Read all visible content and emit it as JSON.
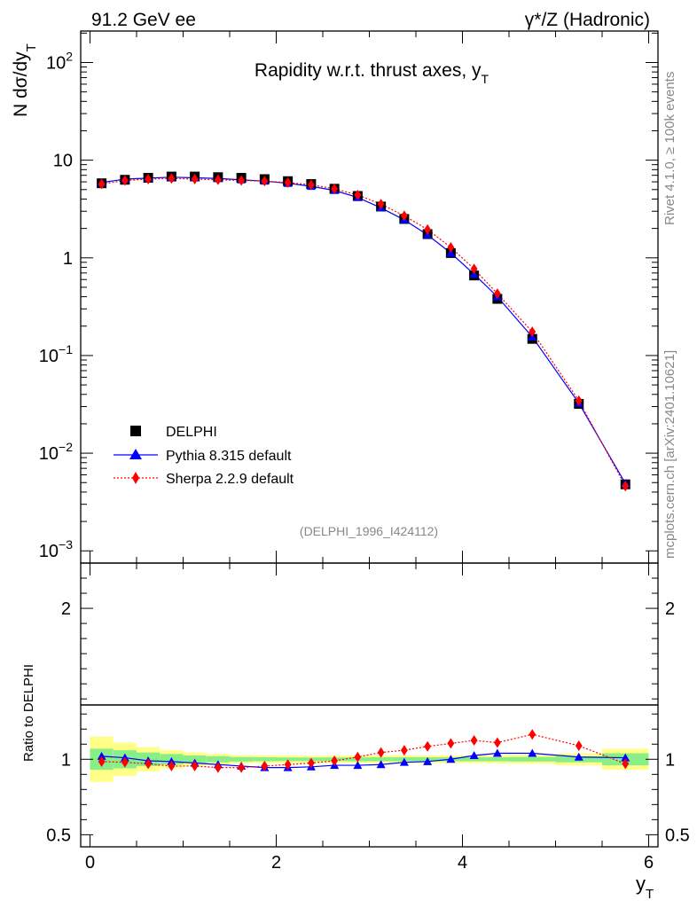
{
  "header": {
    "left": "91.2 GeV ee",
    "right": "γ*/Z (Hadronic)"
  },
  "side_labels": {
    "rivet": "Rivet 4.1.0, ≥ 100k events",
    "mcplots": "mcplots.cern.ch [arXiv:2401.10621]"
  },
  "chart_data": [
    {
      "type": "scatter",
      "panel": "main",
      "title": "Rapidity w.r.t. thrust axes, y",
      "title_subscript": "T",
      "ylabel": "N  dσ/dy",
      "ylabel_subscript": "T",
      "yscale": "log",
      "ylim": [
        0.00075,
        210
      ],
      "xlim": [
        -0.1,
        6.1
      ],
      "y_tick_labels": [
        {
          "value": 100,
          "base": "10",
          "exp": "2"
        },
        {
          "value": 10,
          "base": "10",
          "exp": ""
        },
        {
          "value": 1,
          "base": "1",
          "exp": ""
        },
        {
          "value": 0.1,
          "base": "10",
          "exp": "−1"
        },
        {
          "value": 0.01,
          "base": "10",
          "exp": "−2"
        },
        {
          "value": 0.001,
          "base": "10",
          "exp": "−3"
        }
      ],
      "analysis_id": "(DELPHI_1996_I424112)",
      "legend": {
        "position": "bottom-left",
        "entries": [
          "DELPHI",
          "Pythia 8.315 default",
          "Sherpa 2.2.9 default"
        ]
      },
      "x": [
        0.125,
        0.375,
        0.625,
        0.875,
        1.125,
        1.375,
        1.625,
        1.875,
        2.125,
        2.375,
        2.625,
        2.875,
        3.125,
        3.375,
        3.625,
        3.875,
        4.125,
        4.375,
        4.75,
        5.25,
        5.75
      ],
      "series": [
        {
          "name": "DELPHI",
          "color": "#000000",
          "marker": "square",
          "values": [
            5.8,
            6.3,
            6.6,
            6.8,
            6.8,
            6.7,
            6.6,
            6.4,
            6.1,
            5.7,
            5.1,
            4.3,
            3.35,
            2.5,
            1.75,
            1.12,
            0.66,
            0.38,
            0.148,
            0.032,
            0.0048
          ]
        },
        {
          "name": "Pythia 8.315 default",
          "color": "#0000ff",
          "marker": "triangle",
          "line": "solid",
          "values": [
            5.9,
            6.4,
            6.55,
            6.7,
            6.6,
            6.5,
            6.3,
            6.1,
            5.8,
            5.4,
            4.9,
            4.15,
            3.25,
            2.45,
            1.72,
            1.12,
            0.68,
            0.4,
            0.155,
            0.0325,
            0.0049
          ]
        },
        {
          "name": "Sherpa 2.2.9 default",
          "color": "#ff0000",
          "marker": "diamond",
          "line": "dotted",
          "values": [
            5.7,
            6.2,
            6.4,
            6.5,
            6.4,
            6.3,
            6.2,
            6.1,
            5.9,
            5.6,
            5.1,
            4.4,
            3.55,
            2.7,
            1.95,
            1.28,
            0.77,
            0.43,
            0.175,
            0.0345,
            0.0046
          ]
        }
      ]
    },
    {
      "type": "scatter",
      "panel": "ratio",
      "ylabel": "Ratio to DELPHI",
      "xlabel": "y",
      "xlabel_subscript": "T",
      "ylim": [
        0.42,
        2.3
      ],
      "xlim": [
        -0.1,
        6.1
      ],
      "x_ticks": [
        0,
        2,
        4,
        6
      ],
      "y_ticks": [
        0.5,
        1,
        2
      ],
      "x_edges": [
        0,
        0.25,
        0.5,
        0.75,
        1.0,
        1.25,
        1.5,
        1.75,
        2.0,
        2.25,
        2.5,
        2.75,
        3.0,
        3.25,
        3.5,
        3.75,
        4.0,
        4.25,
        4.5,
        5.0,
        5.5,
        6.0
      ],
      "band_green_halfwidth": [
        0.07,
        0.06,
        0.045,
        0.035,
        0.025,
        0.02,
        0.015,
        0.013,
        0.012,
        0.012,
        0.012,
        0.013,
        0.013,
        0.013,
        0.013,
        0.013,
        0.013,
        0.013,
        0.015,
        0.02,
        0.04
      ],
      "band_yellow_halfwidth": [
        0.15,
        0.11,
        0.08,
        0.06,
        0.045,
        0.035,
        0.028,
        0.025,
        0.025,
        0.024,
        0.024,
        0.025,
        0.026,
        0.026,
        0.026,
        0.026,
        0.026,
        0.027,
        0.03,
        0.04,
        0.07
      ],
      "x": [
        0.125,
        0.375,
        0.625,
        0.875,
        1.125,
        1.375,
        1.625,
        1.875,
        2.125,
        2.375,
        2.625,
        2.875,
        3.125,
        3.375,
        3.625,
        3.875,
        4.125,
        4.375,
        4.75,
        5.25,
        5.75
      ],
      "series": [
        {
          "name": "Pythia 8.315 default",
          "color": "#0000ff",
          "marker": "triangle",
          "values": [
            1.02,
            1.01,
            0.99,
            0.985,
            0.975,
            0.965,
            0.955,
            0.945,
            0.945,
            0.95,
            0.96,
            0.96,
            0.965,
            0.98,
            0.985,
            1.0,
            1.025,
            1.04,
            1.04,
            1.015,
            1.01
          ]
        },
        {
          "name": "Sherpa 2.2.9 default",
          "color": "#ff0000",
          "marker": "diamond",
          "values": [
            0.985,
            0.98,
            0.97,
            0.955,
            0.955,
            0.945,
            0.945,
            0.955,
            0.965,
            0.975,
            0.99,
            1.015,
            1.045,
            1.06,
            1.085,
            1.105,
            1.125,
            1.11,
            1.165,
            1.09,
            0.97
          ]
        }
      ]
    }
  ]
}
